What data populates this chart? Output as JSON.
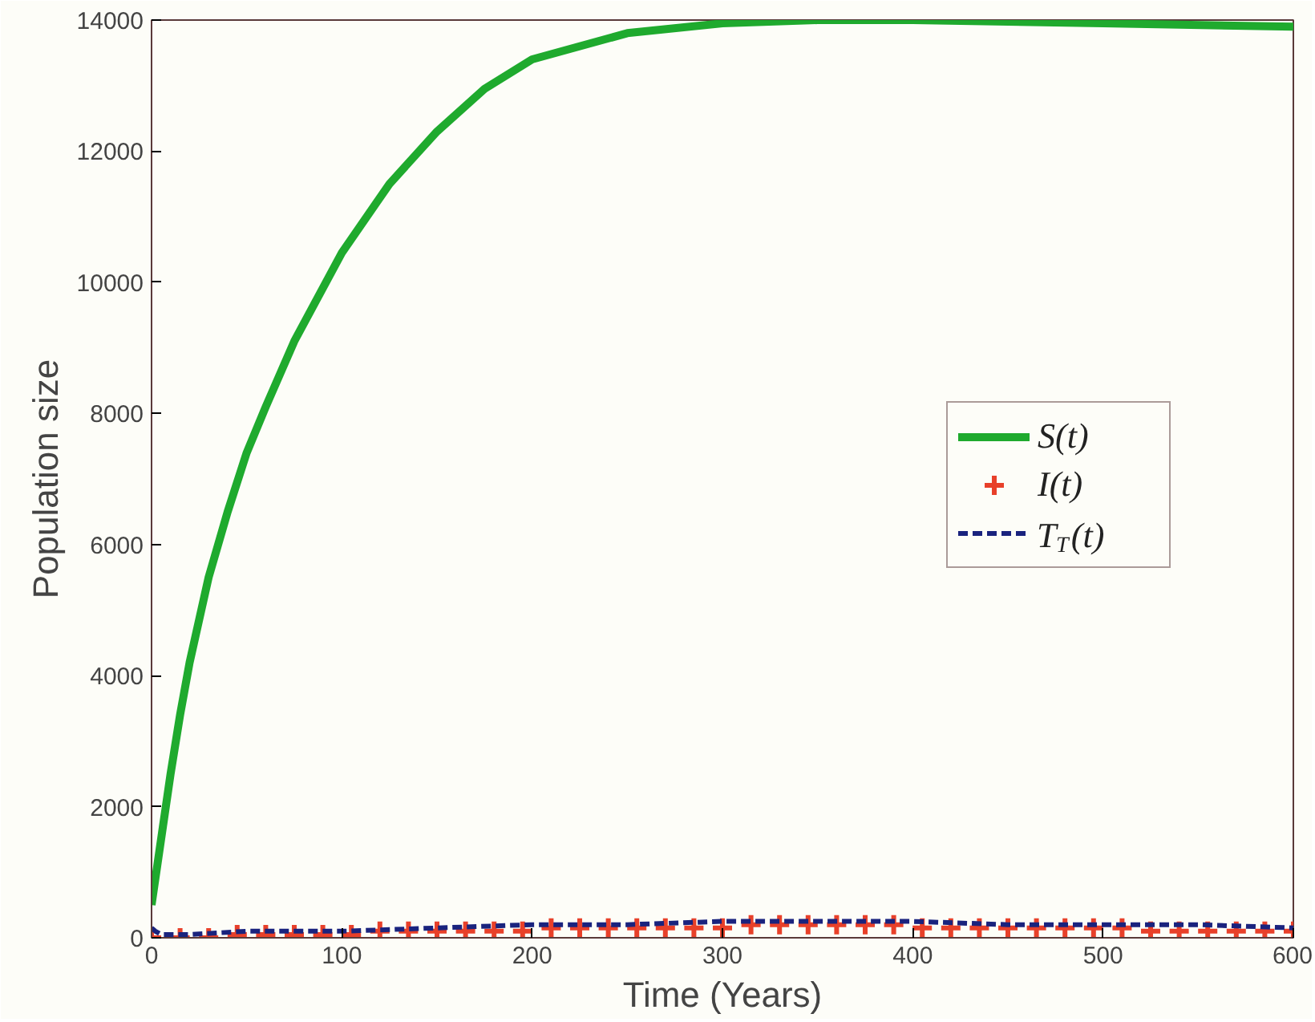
{
  "chart_data": {
    "type": "line",
    "xlabel": "Time (Years)",
    "ylabel": "Population size",
    "xlim": [
      0,
      600
    ],
    "ylim": [
      0,
      14000
    ],
    "xticks": [
      0,
      100,
      200,
      300,
      400,
      500,
      600
    ],
    "yticks": [
      0,
      2000,
      4000,
      6000,
      8000,
      10000,
      12000,
      14000
    ],
    "grid": false,
    "legend": "right",
    "series": [
      {
        "name": "S(t)",
        "color": "#1faa2e",
        "line_style": "solid",
        "x": [
          0,
          3,
          6,
          10,
          15,
          20,
          30,
          40,
          50,
          60,
          75,
          100,
          125,
          150,
          175,
          200,
          250,
          300,
          350,
          400,
          500,
          600
        ],
        "values": [
          500,
          1100,
          1700,
          2500,
          3400,
          4200,
          5500,
          6500,
          7400,
          8100,
          9100,
          10450,
          11500,
          12300,
          12950,
          13400,
          13800,
          13950,
          14000,
          14000,
          13950,
          13900
        ]
      },
      {
        "name": "I(t)",
        "type": "scatter",
        "marker": "cross",
        "color": "#e8402a",
        "x": [
          0,
          15,
          30,
          45,
          60,
          75,
          90,
          105,
          120,
          135,
          150,
          165,
          180,
          195,
          210,
          225,
          240,
          255,
          270,
          285,
          300,
          315,
          330,
          345,
          360,
          375,
          390,
          405,
          420,
          435,
          450,
          465,
          480,
          495,
          510,
          525,
          540,
          555,
          570,
          585,
          600
        ],
        "values": [
          0,
          0,
          0,
          50,
          50,
          50,
          50,
          50,
          100,
          100,
          100,
          100,
          100,
          100,
          150,
          150,
          150,
          150,
          150,
          150,
          150,
          200,
          200,
          200,
          200,
          200,
          200,
          150,
          150,
          150,
          150,
          150,
          150,
          150,
          150,
          100,
          100,
          100,
          100,
          100,
          100
        ]
      },
      {
        "name": "T$_{T}$(t)",
        "color": "#1a237e",
        "line_style": "dashed",
        "x": [
          0,
          2,
          5,
          20,
          50,
          100,
          150,
          200,
          250,
          300,
          350,
          400,
          450,
          500,
          550,
          600
        ],
        "values": [
          150,
          100,
          50,
          50,
          100,
          100,
          150,
          200,
          200,
          250,
          250,
          250,
          200,
          200,
          200,
          150
        ]
      }
    ]
  }
}
